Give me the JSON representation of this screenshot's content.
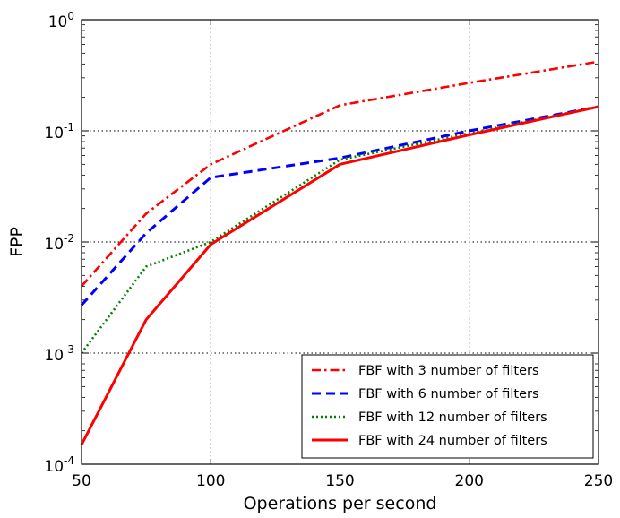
{
  "chart_data": {
    "type": "line",
    "xlabel": "Operations per second",
    "ylabel": "FPP",
    "xlim": [
      50,
      250
    ],
    "ylim": [
      0.0001,
      1
    ],
    "yscale": "log",
    "grid": true,
    "x": [
      50,
      75,
      100,
      150,
      200,
      250
    ],
    "x_ticks": [
      "50",
      "100",
      "150",
      "200",
      "250"
    ],
    "y_ticks": [
      {
        "base": "10",
        "exp": "0"
      },
      {
        "base": "10",
        "exp": "-1"
      },
      {
        "base": "10",
        "exp": "-2"
      },
      {
        "base": "10",
        "exp": "-3"
      },
      {
        "base": "10",
        "exp": "-4"
      }
    ],
    "legend_position": "lower-right",
    "series": [
      {
        "name": "FBF with 3 number of filters",
        "values": [
          0.004,
          0.018,
          0.05,
          0.17,
          0.27,
          0.42
        ],
        "color": "#ff0000",
        "style": "dashdot"
      },
      {
        "name": "FBF with 6 number of filters",
        "values": [
          0.0027,
          0.012,
          0.038,
          0.057,
          0.1,
          0.165
        ],
        "color": "#0000ff",
        "style": "dashed"
      },
      {
        "name": "FBF with 12 number of filters",
        "values": [
          0.001,
          0.006,
          0.01,
          0.055,
          0.095,
          0.165
        ],
        "color": "#008000",
        "style": "dotted"
      },
      {
        "name": "FBF with 24 number of filters",
        "values": [
          0.00015,
          0.002,
          0.0095,
          0.05,
          0.092,
          0.165
        ],
        "color": "#ff0000",
        "style": "solid"
      }
    ]
  }
}
